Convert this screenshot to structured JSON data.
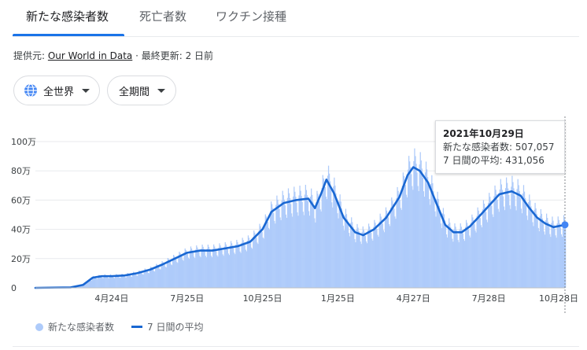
{
  "tabs": [
    {
      "label": "新たな感染者数",
      "active": true
    },
    {
      "label": "死亡者数",
      "active": false
    },
    {
      "label": "ワクチン接種",
      "active": false
    }
  ],
  "source": {
    "prefix": "提供元: ",
    "link_text": "Our World in Data",
    "updated": " · 最終更新: 2 日前"
  },
  "filters": {
    "region_label": "全世界",
    "period_label": "全期間"
  },
  "colors": {
    "bars": "#aecbfa",
    "line": "#1967d2",
    "accent": "#1a73e8",
    "grid": "#e8eaed"
  },
  "icons": {
    "region": "globe-icon",
    "dropdown": "caret-down-icon"
  },
  "tooltip": {
    "date": "2021年10月29日",
    "cases_text": "新たな感染者数: 507,057",
    "avg_text": "7 日間の平均: 431,056"
  },
  "legend": {
    "bars_label": "新たな感染者数",
    "line_label": "7 日間の平均"
  },
  "chart_data": {
    "type": "bar",
    "title": "",
    "xlabel": "",
    "ylabel": "",
    "x_ticks": [
      "4月24日",
      "7月25日",
      "10月25日",
      "1月25日",
      "4月27日",
      "7月28日",
      "10月28日"
    ],
    "y_ticks": [
      "0",
      "20万",
      "40万",
      "60万",
      "80万",
      "100万"
    ],
    "ylim": [
      0,
      1000000
    ],
    "grid": true,
    "legend_position": "bottom-left",
    "x_range": [
      "2020-01-22",
      "2021-10-29"
    ],
    "series": [
      {
        "name": "7 日間の平均",
        "kind": "line",
        "points": [
          [
            "2020-01-22",
            0
          ],
          [
            "2020-02-15",
            2000
          ],
          [
            "2020-03-05",
            3000
          ],
          [
            "2020-03-20",
            20000
          ],
          [
            "2020-04-01",
            70000
          ],
          [
            "2020-04-12",
            80000
          ],
          [
            "2020-04-24",
            80000
          ],
          [
            "2020-05-10",
            85000
          ],
          [
            "2020-05-25",
            100000
          ],
          [
            "2020-06-10",
            125000
          ],
          [
            "2020-06-25",
            160000
          ],
          [
            "2020-07-10",
            200000
          ],
          [
            "2020-07-25",
            240000
          ],
          [
            "2020-08-10",
            255000
          ],
          [
            "2020-08-25",
            255000
          ],
          [
            "2020-09-10",
            270000
          ],
          [
            "2020-09-25",
            285000
          ],
          [
            "2020-10-10",
            315000
          ],
          [
            "2020-10-25",
            400000
          ],
          [
            "2020-11-05",
            520000
          ],
          [
            "2020-11-20",
            580000
          ],
          [
            "2020-12-05",
            600000
          ],
          [
            "2020-12-20",
            610000
          ],
          [
            "2020-12-28",
            545000
          ],
          [
            "2021-01-05",
            650000
          ],
          [
            "2021-01-11",
            740000
          ],
          [
            "2021-01-20",
            650000
          ],
          [
            "2021-02-01",
            480000
          ],
          [
            "2021-02-15",
            380000
          ],
          [
            "2021-02-25",
            360000
          ],
          [
            "2021-03-10",
            400000
          ],
          [
            "2021-03-25",
            480000
          ],
          [
            "2021-04-10",
            620000
          ],
          [
            "2021-04-20",
            770000
          ],
          [
            "2021-04-27",
            825000
          ],
          [
            "2021-05-05",
            800000
          ],
          [
            "2021-05-15",
            720000
          ],
          [
            "2021-05-25",
            580000
          ],
          [
            "2021-06-05",
            430000
          ],
          [
            "2021-06-15",
            380000
          ],
          [
            "2021-06-25",
            380000
          ],
          [
            "2021-07-05",
            420000
          ],
          [
            "2021-07-15",
            480000
          ],
          [
            "2021-07-28",
            560000
          ],
          [
            "2021-08-10",
            640000
          ],
          [
            "2021-08-25",
            660000
          ],
          [
            "2021-09-05",
            630000
          ],
          [
            "2021-09-15",
            550000
          ],
          [
            "2021-09-25",
            480000
          ],
          [
            "2021-10-05",
            440000
          ],
          [
            "2021-10-15",
            415000
          ],
          [
            "2021-10-29",
            431056
          ]
        ]
      }
    ]
  }
}
